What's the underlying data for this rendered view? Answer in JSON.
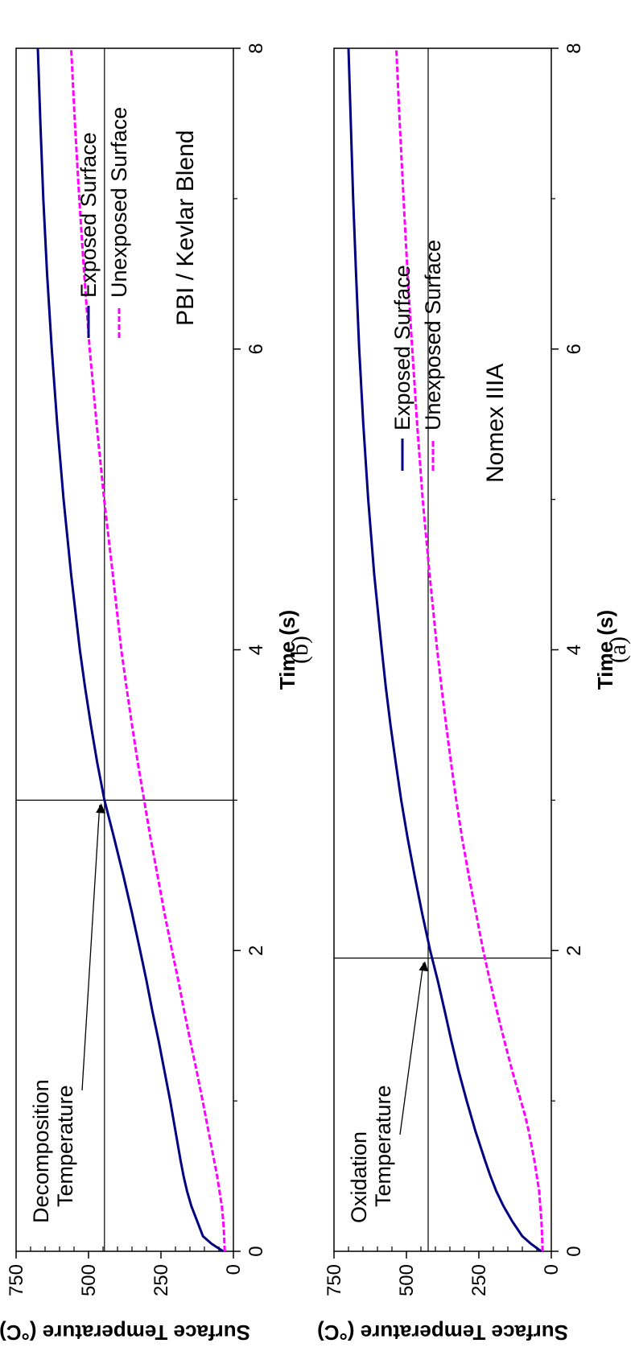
{
  "chart_data": [
    {
      "type": "line",
      "caption": "(a)",
      "material": "Nomex IIIA",
      "xlabel": "Time (s)",
      "ylabel": "Surface Temperature (°C)",
      "xlim": [
        0,
        8
      ],
      "ylim": [
        0,
        750
      ],
      "x_ticks": [
        "0",
        "2",
        "4",
        "6",
        "8"
      ],
      "y_ticks": [
        "0",
        "250",
        "500",
        "750"
      ],
      "reference_lines": {
        "temperature": 425,
        "time": 1.95
      },
      "annotation": {
        "line1": "Oxidation",
        "line2": "Temperature",
        "target_time": 1.95,
        "target_temperature": 425
      },
      "legend_position": "right",
      "series": [
        {
          "name": "Exposed Surface",
          "color": "#000080",
          "style": "solid",
          "x": [
            0,
            0.05,
            0.1,
            0.2,
            0.3,
            0.4,
            0.5,
            0.6,
            0.8,
            1.0,
            1.2,
            1.4,
            1.6,
            1.8,
            2.0,
            2.25,
            2.5,
            2.75,
            3.0,
            3.25,
            3.5,
            3.75,
            4.0,
            4.5,
            5.0,
            5.5,
            6.0,
            6.5,
            7.0,
            7.5,
            8.0
          ],
          "y": [
            35,
            70,
            100,
            135,
            165,
            190,
            210,
            228,
            262,
            292,
            320,
            345,
            368,
            392,
            418,
            446,
            472,
            496,
            518,
            537,
            555,
            571,
            585,
            611,
            632,
            649,
            663,
            674,
            684,
            692,
            700
          ]
        },
        {
          "name": "Unexposed Surface",
          "color": "#ff00ff",
          "style": "dashed",
          "x": [
            0,
            0.1,
            0.2,
            0.3,
            0.4,
            0.5,
            0.6,
            0.7,
            0.8,
            0.9,
            1.0,
            1.2,
            1.4,
            1.6,
            1.8,
            2.0,
            2.25,
            2.5,
            2.75,
            3.0,
            3.25,
            3.5,
            3.75,
            4.0,
            4.5,
            5.0,
            5.5,
            6.0,
            6.5,
            7.0,
            7.5,
            8.0
          ],
          "y": [
            30,
            32,
            34,
            38,
            42,
            50,
            58,
            68,
            78,
            90,
            105,
            135,
            162,
            188,
            212,
            235,
            260,
            285,
            308,
            328,
            346,
            363,
            379,
            394,
            420,
            444,
            463,
            480,
            496,
            510,
            523,
            535
          ]
        }
      ]
    },
    {
      "type": "line",
      "caption": "(b)",
      "material": "PBI / Kevlar Blend",
      "xlabel": "Time (s)",
      "ylabel": "Surface Temperature (°C)",
      "xlim": [
        0,
        8
      ],
      "ylim": [
        0,
        750
      ],
      "x_ticks": [
        "0",
        "2",
        "4",
        "6",
        "8"
      ],
      "y_ticks": [
        "0",
        "250",
        "500",
        "750"
      ],
      "reference_lines": {
        "temperature": 445,
        "time": 3.0
      },
      "annotation": {
        "line1": "Decomposition",
        "line2": "Temperature",
        "target_time": 3.0,
        "target_temperature": 445
      },
      "legend_position": "right",
      "series": [
        {
          "name": "Exposed Surface",
          "color": "#000080",
          "style": "solid",
          "x": [
            0,
            0.05,
            0.1,
            0.2,
            0.3,
            0.4,
            0.5,
            0.6,
            0.8,
            1.0,
            1.2,
            1.4,
            1.6,
            1.8,
            2.0,
            2.25,
            2.5,
            2.75,
            3.0,
            3.25,
            3.5,
            3.75,
            4.0,
            4.5,
            5.0,
            5.5,
            6.0,
            6.5,
            7.0,
            7.5,
            8.0
          ],
          "y": [
            35,
            75,
            105,
            125,
            145,
            160,
            172,
            182,
            200,
            218,
            238,
            258,
            280,
            300,
            322,
            350,
            380,
            412,
            445,
            470,
            492,
            512,
            530,
            560,
            586,
            608,
            627,
            643,
            656,
            666,
            675
          ]
        },
        {
          "name": "Unexposed Surface",
          "color": "#ff00ff",
          "style": "dashed",
          "x": [
            0,
            0.1,
            0.2,
            0.3,
            0.4,
            0.5,
            0.6,
            0.8,
            1.0,
            1.2,
            1.4,
            1.6,
            1.8,
            2.0,
            2.25,
            2.5,
            2.75,
            3.0,
            3.25,
            3.5,
            3.75,
            4.0,
            4.5,
            5.0,
            5.5,
            6.0,
            6.5,
            7.0,
            7.5,
            8.0
          ],
          "y": [
            30,
            32,
            35,
            40,
            48,
            56,
            66,
            86,
            106,
            127,
            149,
            170,
            190,
            212,
            238,
            262,
            286,
            308,
            330,
            350,
            369,
            387,
            416,
            446,
            472,
            496,
            515,
            532,
            547,
            560
          ]
        }
      ]
    }
  ]
}
